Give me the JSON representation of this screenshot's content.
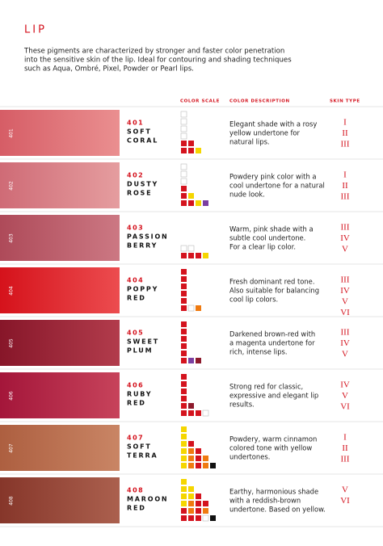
{
  "header": {
    "title": "LIP",
    "intro": [
      "These pigments are characterized by stronger and faster color penetration",
      "into the sensitive skin of the lip. Ideal for contouring and shading techniques",
      "such as Aqua, Ombré, Pixel, Powder or Pearl lips."
    ]
  },
  "table": {
    "columns": [
      "COLOR SCALE",
      "COLOR DESCRIPTION",
      "SKIN TYPE"
    ],
    "rows": [
      {
        "code": "401",
        "name": [
          "SOFT",
          "CORAL"
        ],
        "description": [
          "Elegant shade with a rosy",
          "yellow undertone for",
          "natural lips."
        ],
        "skin_types": [
          "I",
          "II",
          "III"
        ]
      },
      {
        "code": "402",
        "name": [
          "DUSTY",
          "ROSE"
        ],
        "description": [
          "Powdery pink color with a",
          "cool undertone for a natural",
          "nude look."
        ],
        "skin_types": [
          "I",
          "II",
          "III"
        ]
      },
      {
        "code": "403",
        "name": [
          "PASSION",
          "BERRY"
        ],
        "description": [
          "Warm, pink shade with a",
          "subtle cool undertone.",
          "For a clear lip color."
        ],
        "skin_types": [
          "III",
          "IV",
          "V"
        ]
      },
      {
        "code": "404",
        "name": [
          "POPPY",
          "RED"
        ],
        "description": [
          "Fresh dominant red tone.",
          "Also suitable for balancing",
          "cool lip colors."
        ],
        "skin_types": [
          "III",
          "IV",
          "V",
          "VI"
        ]
      },
      {
        "code": "405",
        "name": [
          "SWEET",
          "PLUM"
        ],
        "description": [
          "Darkened brown-red with",
          "a magenta undertone for",
          "rich, intense lips."
        ],
        "skin_types": [
          "III",
          "IV",
          "V"
        ]
      },
      {
        "code": "406",
        "name": [
          "RUBY",
          "RED"
        ],
        "description": [
          "Strong red for classic,",
          "expressive and elegant lip",
          "results."
        ],
        "skin_types": [
          "IV",
          "V",
          "VI"
        ]
      },
      {
        "code": "407",
        "name": [
          "SOFT",
          "TERRA"
        ],
        "description": [
          "Powdery, warm cinnamon",
          "colored tone with yellow",
          "undertones."
        ],
        "skin_types": [
          "I",
          "II",
          "III"
        ]
      },
      {
        "code": "408",
        "name": [
          "MAROON",
          "RED"
        ],
        "description": [
          "Earthy, harmonious shade",
          "with a reddish-brown",
          "undertone. Based on yellow."
        ],
        "skin_types": [
          "V",
          "VI"
        ]
      }
    ]
  }
}
